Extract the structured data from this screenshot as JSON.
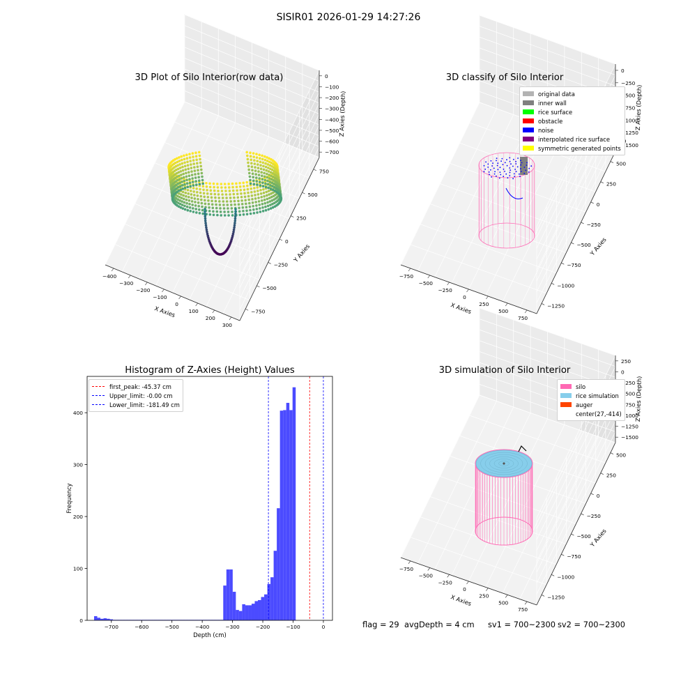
{
  "suptitle": "SISIR01 2026-01-29 14:27:26",
  "footer": {
    "flag": "flag = 29",
    "avg_depth": "avgDepth = 4 cm",
    "sv1": "sv1 = 700~2300",
    "sv2": "sv2 = 700~2300"
  },
  "chart_data": [
    {
      "type": "scatter",
      "title": "3D Plot of Silo Interior(row data)",
      "xlabel": "X Axies",
      "ylabel": "Y Axies",
      "zlabel": "Z Axies (Depth)",
      "x_ticks": [
        "−400",
        "−300",
        "−200",
        "−100",
        "0",
        "100",
        "200",
        "300"
      ],
      "y_ticks": [
        "−750",
        "−500",
        "−250",
        "0",
        "250",
        "500",
        "750"
      ],
      "z_ticks": [
        "0",
        "−100",
        "−200",
        "−300",
        "−400",
        "−500",
        "−600",
        "−700"
      ],
      "colormap": "viridis",
      "colors": {
        "high": "#fde725",
        "mid": "#21918c",
        "low": "#440154"
      }
    },
    {
      "type": "scatter",
      "title": "3D classify of Silo Interior",
      "xlabel": "X Axies",
      "ylabel": "Y Axies",
      "zlabel": "Z Axies (Depth)",
      "x_ticks": [
        "−750",
        "−500",
        "−250",
        "0",
        "250",
        "500",
        "750"
      ],
      "y_ticks": [
        "−1250",
        "−1000",
        "−750",
        "−500",
        "−250",
        "0",
        "250",
        "500"
      ],
      "z_ticks": [
        "0",
        "−250",
        "−500",
        "−750",
        "−1000",
        "−1250",
        "−1500"
      ],
      "z_top_tick": "10",
      "legend": [
        {
          "label": "original data",
          "color": "#b3b3b3"
        },
        {
          "label": "inner wall",
          "color": "#808080"
        },
        {
          "label": "rice surface",
          "color": "#00ff00"
        },
        {
          "label": "obstacle",
          "color": "#ff0000"
        },
        {
          "label": "noise",
          "color": "#0000ff"
        },
        {
          "label": "interpolated rice surface",
          "color": "#800080"
        },
        {
          "label": "symmetric generated points",
          "color": "#ffff00"
        }
      ],
      "colors": {
        "wireframe": "#ff69b4"
      }
    },
    {
      "type": "bar",
      "title": "Histogram of Z-Axies (Height) Values",
      "xlabel": "Depth (cm)",
      "ylabel": "Frequency",
      "xlim": [
        -780,
        30
      ],
      "ylim": [
        0,
        470
      ],
      "x_ticks": [
        -700,
        -600,
        -500,
        -400,
        -300,
        -200,
        -100,
        0
      ],
      "x_tick_labels": [
        "−700",
        "−600",
        "−500",
        "−400",
        "−300",
        "−200",
        "−100",
        "0"
      ],
      "y_ticks": [
        0,
        100,
        200,
        300,
        400
      ],
      "bar_color": "#4b4bff",
      "bin_width": 10.4,
      "bins": [
        [
          -757,
          8
        ],
        [
          -746.6,
          5
        ],
        [
          -736.2,
          3
        ],
        [
          -725.8,
          4
        ],
        [
          -715.4,
          3
        ],
        [
          -705,
          2
        ],
        [
          -694.6,
          1
        ],
        [
          -684.2,
          1
        ],
        [
          -673.8,
          1
        ],
        [
          -663.4,
          1
        ],
        [
          -653,
          1
        ],
        [
          -642.6,
          1
        ],
        [
          -632.2,
          1
        ],
        [
          -621.8,
          1
        ],
        [
          -611.4,
          1
        ],
        [
          -601,
          1
        ],
        [
          -590.6,
          1
        ],
        [
          -580.2,
          1
        ],
        [
          -569.8,
          1
        ],
        [
          -559.4,
          1
        ],
        [
          -549,
          1
        ],
        [
          -538.6,
          1
        ],
        [
          -528.2,
          1
        ],
        [
          -517.8,
          1
        ],
        [
          -507.4,
          1
        ],
        [
          -497,
          1
        ],
        [
          -486.6,
          1
        ],
        [
          -476.2,
          1
        ],
        [
          -465.8,
          1
        ],
        [
          -455.4,
          1
        ],
        [
          -445,
          1
        ],
        [
          -434.6,
          1
        ],
        [
          -424.2,
          1
        ],
        [
          -413.8,
          1
        ],
        [
          -403.4,
          1
        ],
        [
          -393,
          1
        ],
        [
          -382.6,
          1
        ],
        [
          -372.2,
          1
        ],
        [
          -361.8,
          1
        ],
        [
          -351.4,
          1
        ],
        [
          -341,
          1
        ],
        [
          -330.6,
          67
        ],
        [
          -320.2,
          98
        ],
        [
          -309.8,
          98
        ],
        [
          -299.4,
          55
        ],
        [
          -289,
          20
        ],
        [
          -278.6,
          18
        ],
        [
          -268.2,
          31
        ],
        [
          -257.8,
          29
        ],
        [
          -247.4,
          29
        ],
        [
          -237,
          32
        ],
        [
          -226.6,
          37
        ],
        [
          -216.2,
          39
        ],
        [
          -205.8,
          45
        ],
        [
          -195.4,
          50
        ],
        [
          -185,
          70
        ],
        [
          -174.6,
          83
        ],
        [
          -164.2,
          134
        ],
        [
          -153.8,
          216
        ],
        [
          -143.4,
          404
        ],
        [
          -133,
          405
        ],
        [
          -122.6,
          419
        ],
        [
          -112.2,
          405
        ],
        [
          -101.8,
          449
        ]
      ],
      "lines": [
        {
          "label": "first_peak: -45.37 cm",
          "x": -45.37,
          "color": "#ff0000"
        },
        {
          "label": "Upper_limit: -0.00 cm",
          "x": -0.0,
          "color": "#0000ff"
        },
        {
          "label": "Lower_limit: -181.49 cm",
          "x": -181.49,
          "color": "#0000ff"
        }
      ]
    },
    {
      "type": "scatter",
      "title": "3D simulation of Silo Interior",
      "xlabel": "X Axies",
      "ylabel": "Y Axies",
      "zlabel": "Z Axies (Depth)",
      "x_ticks": [
        "−750",
        "−500",
        "−250",
        "0",
        "250",
        "500",
        "750"
      ],
      "y_ticks": [
        "−1250",
        "−1000",
        "−750",
        "−500",
        "−250",
        "0",
        "250",
        "500"
      ],
      "z_ticks": [
        "250",
        "0",
        "−250",
        "−500",
        "−750",
        "−1000",
        "−1250",
        "−1500"
      ],
      "legend": [
        {
          "label": "silo",
          "color": "#ff69b4"
        },
        {
          "label": "rice simulation",
          "color": "#87ceeb"
        },
        {
          "label": "auger",
          "color": "#ff4500"
        },
        {
          "label": "center(27,-414)",
          "color": ""
        }
      ],
      "colors": {
        "silo": "#ff69b4",
        "rice": "#87ceeb"
      }
    }
  ]
}
